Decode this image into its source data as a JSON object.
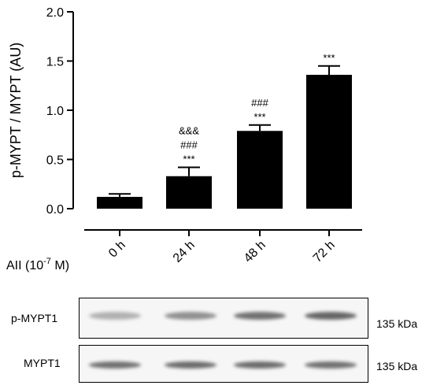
{
  "chart_data": {
    "type": "bar",
    "ylabel": "p-MYPT / MYPT (AU)",
    "ylim": [
      0.0,
      2.0
    ],
    "yticks": [
      "0.0",
      "0.5",
      "1.0",
      "1.5",
      "2.0"
    ],
    "xlabel_prefix": "AII (10",
    "xlabel_exp": "-7",
    "xlabel_suffix": " M)",
    "categories": [
      "0 h",
      "24 h",
      "48 h",
      "72 h"
    ],
    "values": [
      0.12,
      0.33,
      0.79,
      1.36
    ],
    "errors": [
      0.03,
      0.09,
      0.06,
      0.09
    ],
    "annotations": [
      [],
      [
        "***",
        "###",
        "&&&"
      ],
      [
        "***",
        "###"
      ],
      [
        "***"
      ]
    ],
    "bar_color": "#000000"
  },
  "blot": {
    "rows": [
      {
        "label": "p-MYPT1",
        "size": "135 kDa",
        "intensities": [
          0.15,
          0.35,
          0.55,
          0.62
        ]
      },
      {
        "label": "MYPT1",
        "size": "135 kDa",
        "intensities": [
          0.55,
          0.58,
          0.58,
          0.55
        ]
      }
    ]
  }
}
